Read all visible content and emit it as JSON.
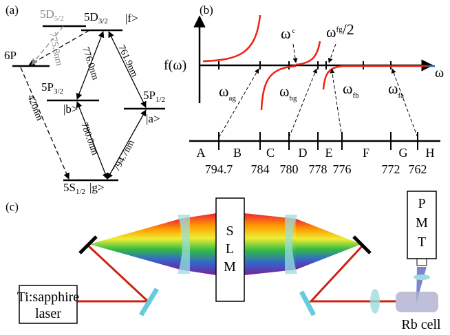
{
  "panel_a": {
    "label": "(a)",
    "levels": [
      {
        "name": "5D",
        "sub": "5/2"
      },
      {
        "name": "5D",
        "sub": "3/2",
        "state": "|f>"
      },
      {
        "name": "6P"
      },
      {
        "name": "5P",
        "sub": "3/2",
        "state": "|b>"
      },
      {
        "name": "5P",
        "sub": "1/2",
        "state": "|a>"
      },
      {
        "name": "5S",
        "sub": "1/2",
        "state": "|g>"
      }
    ],
    "transitions": [
      "775.8nm",
      "776.0nm",
      "761.9nm",
      "780.0nm",
      "794.7nm",
      "420nm"
    ]
  },
  "panel_b": {
    "label": "(b)",
    "y_label": "f(ω)",
    "x_label": "ω",
    "markers": [
      {
        "symbol": "ω",
        "sub": "c"
      },
      {
        "symbol": "ω",
        "sub": "fg",
        "suffix": "/2"
      },
      {
        "symbol": "ω",
        "sub": "ag"
      },
      {
        "symbol": "ω",
        "sub": "bg"
      },
      {
        "symbol": "ω",
        "sub": "fb"
      },
      {
        "symbol": "ω",
        "sub": "fa"
      }
    ],
    "scale_letters": [
      "A",
      "B",
      "C",
      "D",
      "E",
      "F",
      "G",
      "H"
    ],
    "scale_values": [
      794.7,
      784,
      780,
      778,
      776,
      772,
      762
    ]
  },
  "panel_c": {
    "label": "(c)",
    "pmt": [
      "P",
      "M",
      "T"
    ],
    "slm": [
      "S",
      "L",
      "M"
    ],
    "laser": [
      "Ti:sapphire",
      "laser"
    ],
    "cell": "Rb cell"
  }
}
